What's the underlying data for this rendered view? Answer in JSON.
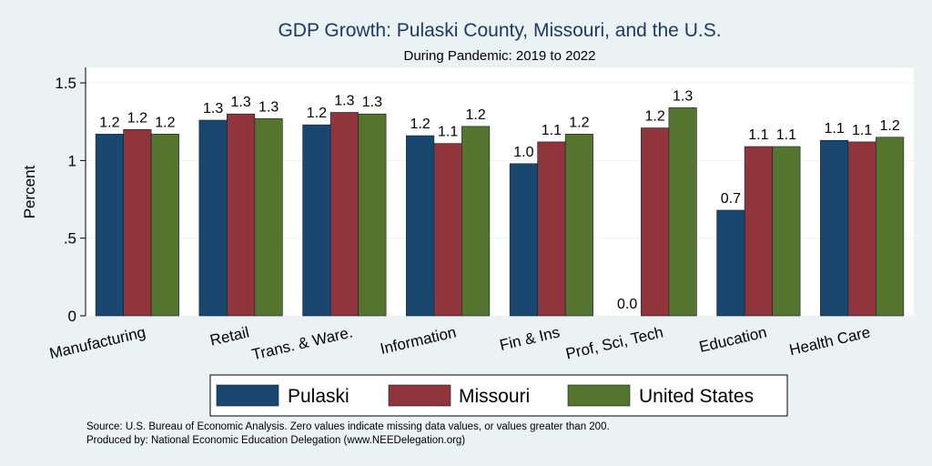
{
  "chart_data": {
    "type": "bar",
    "title": "GDP Growth: Pulaski County, Missouri, and the U.S.",
    "subtitle": "During Pandemic: 2019 to 2022",
    "xlabel": "",
    "ylabel": "Percent",
    "ylim": [
      0,
      1.6
    ],
    "yticks": [
      0,
      0.5,
      1,
      1.5
    ],
    "ytick_labels": [
      "0",
      ".5",
      "1",
      "1.5"
    ],
    "grid": true,
    "legend_position": "bottom",
    "categories": [
      "Manufacturing",
      "Retail",
      "Trans. & Ware.",
      "Information",
      "Fin & Ins",
      "Prof, Sci, Tech",
      "Education",
      "Health Care"
    ],
    "series": [
      {
        "name": "Pulaski",
        "color": "#1a476f",
        "values": [
          1.17,
          1.26,
          1.23,
          1.16,
          0.98,
          0.0,
          0.68,
          1.13
        ],
        "labels": [
          "1.2",
          "1.3",
          "1.2",
          "1.2",
          "1.0",
          "0.0",
          "0.7",
          "1.1"
        ]
      },
      {
        "name": "Missouri",
        "color": "#90353b",
        "values": [
          1.2,
          1.3,
          1.31,
          1.11,
          1.12,
          1.21,
          1.09,
          1.12
        ],
        "labels": [
          "1.2",
          "1.3",
          "1.3",
          "1.1",
          "1.1",
          "1.2",
          "1.1",
          "1.1"
        ]
      },
      {
        "name": "United States",
        "color": "#55752f",
        "values": [
          1.17,
          1.27,
          1.3,
          1.22,
          1.17,
          1.34,
          1.09,
          1.15
        ],
        "labels": [
          "1.2",
          "1.3",
          "1.3",
          "1.2",
          "1.2",
          "1.3",
          "1.1",
          "1.2"
        ]
      }
    ],
    "notes": [
      "Source: U.S. Bureau of Economic Analysis. Zero values indicate missing data values, or values greater than 200.",
      "Produced by: National Economic Education Delegation (www.NEEDelegation.org)"
    ]
  }
}
